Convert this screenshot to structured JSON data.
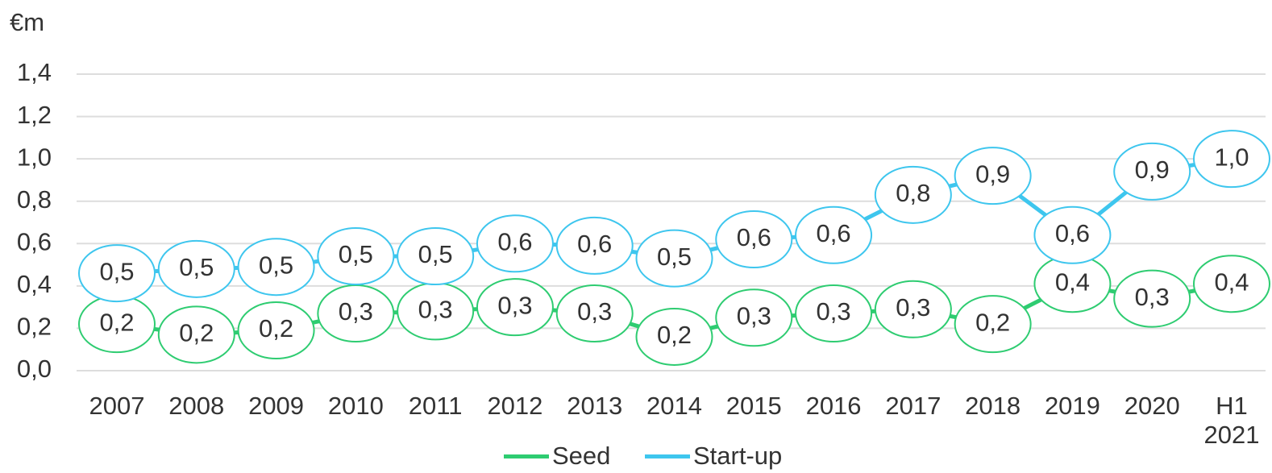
{
  "chart_data": {
    "type": "line",
    "y_label": "€m",
    "categories": [
      "2007",
      "2008",
      "2009",
      "2010",
      "2011",
      "2012",
      "2013",
      "2014",
      "2015",
      "2016",
      "2017",
      "2018",
      "2019",
      "2020",
      "H1 2021"
    ],
    "series": [
      {
        "name": "Seed",
        "color": "#2ecc71",
        "values": [
          0.22,
          0.17,
          0.19,
          0.27,
          0.28,
          0.3,
          0.27,
          0.16,
          0.25,
          0.27,
          0.29,
          0.22,
          0.41,
          0.34,
          0.41
        ],
        "value_labels": [
          "0,2",
          "0,2",
          "0,2",
          "0,3",
          "0,3",
          "0,3",
          "0,3",
          "0,2",
          "0,3",
          "0,3",
          "0,3",
          "0,2",
          "0,4",
          "0,3",
          "0,4"
        ]
      },
      {
        "name": "Start-up",
        "color": "#3ec6ee",
        "values": [
          0.46,
          0.48,
          0.49,
          0.54,
          0.54,
          0.6,
          0.59,
          0.53,
          0.62,
          0.64,
          0.83,
          0.92,
          0.64,
          0.94,
          1.0
        ],
        "value_labels": [
          "0,5",
          "0,5",
          "0,5",
          "0,5",
          "0,5",
          "0,6",
          "0,6",
          "0,5",
          "0,6",
          "0,6",
          "0,8",
          "0,9",
          "0,6",
          "0,9",
          "1,0"
        ]
      }
    ],
    "ylim": [
      0,
      1.4
    ],
    "yticks": [
      {
        "value": 0,
        "label": "0,0"
      },
      {
        "value": 0.2,
        "label": "0,2"
      },
      {
        "value": 0.4,
        "label": "0,4"
      },
      {
        "value": 0.6,
        "label": "0,6"
      },
      {
        "value": 0.8,
        "label": "0,8"
      },
      {
        "value": 1.0,
        "label": "1,0"
      },
      {
        "value": 1.2,
        "label": "1,2"
      },
      {
        "value": 1.4,
        "label": "1,4"
      }
    ],
    "grid": true,
    "legend": "bottom"
  }
}
